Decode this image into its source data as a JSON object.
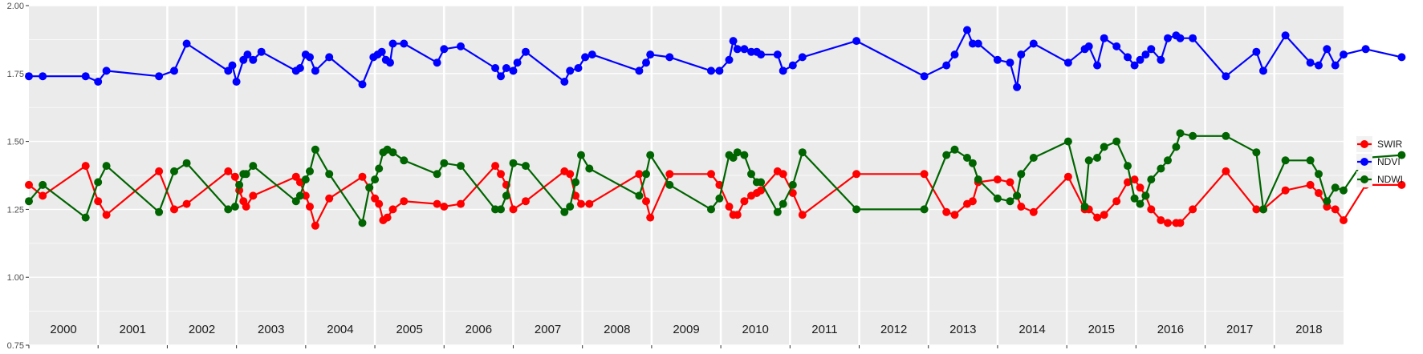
{
  "chart_data": {
    "type": "line",
    "title": "",
    "xlabel": "",
    "ylabel": "",
    "ylim": [
      0.75,
      2.0
    ],
    "yticks": [
      "0.75",
      "1.00",
      "1.25",
      "1.50",
      "1.75",
      "2.00"
    ],
    "xlim": [
      2000.0,
      2019.0
    ],
    "year_labels": [
      "2000",
      "2001",
      "2002",
      "2003",
      "2004",
      "2005",
      "2006",
      "2007",
      "2008",
      "2009",
      "2010",
      "2011",
      "2012",
      "2013",
      "2014",
      "2015",
      "2016",
      "2017",
      "2018"
    ],
    "grid": true,
    "legend_position": "right",
    "series": [
      {
        "name": "SWIR",
        "color": "#ff0000",
        "points": [
          [
            2000.0,
            1.34
          ],
          [
            2000.2,
            1.3
          ],
          [
            2000.82,
            1.41
          ],
          [
            2001.0,
            1.28
          ],
          [
            2001.12,
            1.23
          ],
          [
            2001.88,
            1.39
          ],
          [
            2002.1,
            1.25
          ],
          [
            2002.28,
            1.27
          ],
          [
            2002.88,
            1.39
          ],
          [
            2002.98,
            1.37
          ],
          [
            2003.04,
            1.32
          ],
          [
            2003.1,
            1.28
          ],
          [
            2003.14,
            1.26
          ],
          [
            2003.24,
            1.3
          ],
          [
            2003.86,
            1.37
          ],
          [
            2003.92,
            1.35
          ],
          [
            2004.0,
            1.3
          ],
          [
            2004.06,
            1.26
          ],
          [
            2004.14,
            1.19
          ],
          [
            2004.34,
            1.29
          ],
          [
            2004.82,
            1.37
          ],
          [
            2004.92,
            1.33
          ],
          [
            2005.0,
            1.29
          ],
          [
            2005.06,
            1.27
          ],
          [
            2005.12,
            1.21
          ],
          [
            2005.18,
            1.22
          ],
          [
            2005.26,
            1.25
          ],
          [
            2005.42,
            1.28
          ],
          [
            2005.9,
            1.27
          ],
          [
            2006.0,
            1.26
          ],
          [
            2006.24,
            1.27
          ],
          [
            2006.74,
            1.41
          ],
          [
            2006.82,
            1.38
          ],
          [
            2006.9,
            1.34
          ],
          [
            2007.0,
            1.25
          ],
          [
            2007.18,
            1.28
          ],
          [
            2007.74,
            1.39
          ],
          [
            2007.82,
            1.38
          ],
          [
            2007.9,
            1.3
          ],
          [
            2007.98,
            1.27
          ],
          [
            2008.1,
            1.27
          ],
          [
            2008.82,
            1.38
          ],
          [
            2008.92,
            1.28
          ],
          [
            2008.98,
            1.22
          ],
          [
            2009.26,
            1.38
          ],
          [
            2009.86,
            1.38
          ],
          [
            2009.98,
            1.34
          ],
          [
            2010.12,
            1.26
          ],
          [
            2010.18,
            1.23
          ],
          [
            2010.24,
            1.23
          ],
          [
            2010.34,
            1.28
          ],
          [
            2010.44,
            1.3
          ],
          [
            2010.52,
            1.31
          ],
          [
            2010.58,
            1.32
          ],
          [
            2010.82,
            1.39
          ],
          [
            2010.9,
            1.38
          ],
          [
            2011.04,
            1.31
          ],
          [
            2011.18,
            1.23
          ],
          [
            2011.96,
            1.38
          ],
          [
            2012.94,
            1.38
          ],
          [
            2013.26,
            1.24
          ],
          [
            2013.38,
            1.23
          ],
          [
            2013.56,
            1.27
          ],
          [
            2013.64,
            1.28
          ],
          [
            2013.72,
            1.35
          ],
          [
            2014.0,
            1.36
          ],
          [
            2014.18,
            1.35
          ],
          [
            2014.28,
            1.3
          ],
          [
            2014.34,
            1.26
          ],
          [
            2014.52,
            1.24
          ],
          [
            2015.02,
            1.37
          ],
          [
            2015.26,
            1.25
          ],
          [
            2015.32,
            1.25
          ],
          [
            2015.44,
            1.22
          ],
          [
            2015.54,
            1.23
          ],
          [
            2015.72,
            1.28
          ],
          [
            2015.88,
            1.35
          ],
          [
            2015.98,
            1.36
          ],
          [
            2016.06,
            1.33
          ],
          [
            2016.14,
            1.3
          ],
          [
            2016.22,
            1.25
          ],
          [
            2016.36,
            1.21
          ],
          [
            2016.46,
            1.2
          ],
          [
            2016.58,
            1.2
          ],
          [
            2016.64,
            1.2
          ],
          [
            2016.82,
            1.25
          ],
          [
            2017.3,
            1.39
          ],
          [
            2017.74,
            1.25
          ],
          [
            2017.84,
            1.25
          ],
          [
            2018.16,
            1.32
          ],
          [
            2018.52,
            1.34
          ],
          [
            2018.64,
            1.31
          ],
          [
            2018.76,
            1.26
          ],
          [
            2018.88,
            1.25
          ],
          [
            2019.0,
            1.21
          ],
          [
            2019.32,
            1.34
          ],
          [
            2019.84,
            1.34
          ]
        ]
      },
      {
        "name": "NDVI",
        "color": "#0000ff",
        "points": [
          [
            2000.0,
            1.74
          ],
          [
            2000.2,
            1.74
          ],
          [
            2000.82,
            1.74
          ],
          [
            2001.0,
            1.72
          ],
          [
            2001.12,
            1.76
          ],
          [
            2001.88,
            1.74
          ],
          [
            2002.1,
            1.76
          ],
          [
            2002.28,
            1.86
          ],
          [
            2002.88,
            1.76
          ],
          [
            2002.94,
            1.78
          ],
          [
            2003.0,
            1.72
          ],
          [
            2003.1,
            1.8
          ],
          [
            2003.16,
            1.82
          ],
          [
            2003.24,
            1.8
          ],
          [
            2003.36,
            1.83
          ],
          [
            2003.86,
            1.76
          ],
          [
            2003.92,
            1.77
          ],
          [
            2004.0,
            1.82
          ],
          [
            2004.06,
            1.81
          ],
          [
            2004.14,
            1.76
          ],
          [
            2004.34,
            1.81
          ],
          [
            2004.82,
            1.71
          ],
          [
            2004.98,
            1.81
          ],
          [
            2005.04,
            1.82
          ],
          [
            2005.1,
            1.83
          ],
          [
            2005.16,
            1.8
          ],
          [
            2005.22,
            1.79
          ],
          [
            2005.26,
            1.86
          ],
          [
            2005.42,
            1.86
          ],
          [
            2005.9,
            1.79
          ],
          [
            2006.0,
            1.84
          ],
          [
            2006.24,
            1.85
          ],
          [
            2006.74,
            1.77
          ],
          [
            2006.82,
            1.74
          ],
          [
            2006.9,
            1.77
          ],
          [
            2007.0,
            1.76
          ],
          [
            2007.06,
            1.79
          ],
          [
            2007.18,
            1.83
          ],
          [
            2007.74,
            1.72
          ],
          [
            2007.82,
            1.76
          ],
          [
            2007.94,
            1.77
          ],
          [
            2008.04,
            1.81
          ],
          [
            2008.14,
            1.82
          ],
          [
            2008.82,
            1.76
          ],
          [
            2008.92,
            1.79
          ],
          [
            2008.98,
            1.82
          ],
          [
            2009.26,
            1.81
          ],
          [
            2009.86,
            1.76
          ],
          [
            2009.98,
            1.76
          ],
          [
            2010.12,
            1.8
          ],
          [
            2010.18,
            1.87
          ],
          [
            2010.24,
            1.84
          ],
          [
            2010.34,
            1.84
          ],
          [
            2010.44,
            1.83
          ],
          [
            2010.52,
            1.83
          ],
          [
            2010.58,
            1.82
          ],
          [
            2010.82,
            1.82
          ],
          [
            2010.9,
            1.76
          ],
          [
            2011.04,
            1.78
          ],
          [
            2011.18,
            1.81
          ],
          [
            2011.96,
            1.87
          ],
          [
            2012.94,
            1.74
          ],
          [
            2013.26,
            1.78
          ],
          [
            2013.38,
            1.82
          ],
          [
            2013.56,
            1.91
          ],
          [
            2013.64,
            1.86
          ],
          [
            2013.72,
            1.86
          ],
          [
            2014.0,
            1.8
          ],
          [
            2014.18,
            1.79
          ],
          [
            2014.28,
            1.7
          ],
          [
            2014.34,
            1.82
          ],
          [
            2014.52,
            1.86
          ],
          [
            2015.02,
            1.79
          ],
          [
            2015.26,
            1.84
          ],
          [
            2015.32,
            1.85
          ],
          [
            2015.44,
            1.78
          ],
          [
            2015.54,
            1.88
          ],
          [
            2015.72,
            1.85
          ],
          [
            2015.88,
            1.81
          ],
          [
            2015.98,
            1.78
          ],
          [
            2016.06,
            1.8
          ],
          [
            2016.14,
            1.82
          ],
          [
            2016.22,
            1.84
          ],
          [
            2016.36,
            1.8
          ],
          [
            2016.46,
            1.88
          ],
          [
            2016.58,
            1.89
          ],
          [
            2016.64,
            1.88
          ],
          [
            2016.82,
            1.88
          ],
          [
            2017.3,
            1.74
          ],
          [
            2017.74,
            1.83
          ],
          [
            2017.84,
            1.76
          ],
          [
            2018.16,
            1.89
          ],
          [
            2018.52,
            1.79
          ],
          [
            2018.64,
            1.78
          ],
          [
            2018.76,
            1.84
          ],
          [
            2018.88,
            1.78
          ],
          [
            2019.0,
            1.82
          ],
          [
            2019.32,
            1.84
          ],
          [
            2019.84,
            1.81
          ]
        ]
      },
      {
        "name": "NDWI",
        "color": "#006400",
        "points": [
          [
            2000.0,
            1.28
          ],
          [
            2000.2,
            1.34
          ],
          [
            2000.82,
            1.22
          ],
          [
            2001.0,
            1.35
          ],
          [
            2001.12,
            1.41
          ],
          [
            2001.88,
            1.24
          ],
          [
            2002.1,
            1.39
          ],
          [
            2002.28,
            1.42
          ],
          [
            2002.88,
            1.25
          ],
          [
            2002.98,
            1.26
          ],
          [
            2003.04,
            1.34
          ],
          [
            2003.1,
            1.38
          ],
          [
            2003.14,
            1.38
          ],
          [
            2003.24,
            1.41
          ],
          [
            2003.86,
            1.28
          ],
          [
            2003.92,
            1.3
          ],
          [
            2004.0,
            1.36
          ],
          [
            2004.06,
            1.39
          ],
          [
            2004.14,
            1.47
          ],
          [
            2004.34,
            1.38
          ],
          [
            2004.82,
            1.2
          ],
          [
            2004.92,
            1.33
          ],
          [
            2005.0,
            1.36
          ],
          [
            2005.06,
            1.4
          ],
          [
            2005.12,
            1.46
          ],
          [
            2005.18,
            1.47
          ],
          [
            2005.26,
            1.46
          ],
          [
            2005.42,
            1.43
          ],
          [
            2005.9,
            1.38
          ],
          [
            2006.0,
            1.42
          ],
          [
            2006.24,
            1.41
          ],
          [
            2006.74,
            1.25
          ],
          [
            2006.82,
            1.25
          ],
          [
            2006.9,
            1.3
          ],
          [
            2007.0,
            1.42
          ],
          [
            2007.18,
            1.41
          ],
          [
            2007.74,
            1.24
          ],
          [
            2007.82,
            1.26
          ],
          [
            2007.9,
            1.35
          ],
          [
            2007.98,
            1.45
          ],
          [
            2008.1,
            1.4
          ],
          [
            2008.82,
            1.3
          ],
          [
            2008.92,
            1.38
          ],
          [
            2008.98,
            1.45
          ],
          [
            2009.26,
            1.34
          ],
          [
            2009.86,
            1.25
          ],
          [
            2009.98,
            1.29
          ],
          [
            2010.12,
            1.45
          ],
          [
            2010.18,
            1.44
          ],
          [
            2010.24,
            1.46
          ],
          [
            2010.34,
            1.45
          ],
          [
            2010.44,
            1.38
          ],
          [
            2010.52,
            1.35
          ],
          [
            2010.58,
            1.35
          ],
          [
            2010.82,
            1.24
          ],
          [
            2010.9,
            1.27
          ],
          [
            2011.04,
            1.34
          ],
          [
            2011.18,
            1.46
          ],
          [
            2011.96,
            1.25
          ],
          [
            2012.94,
            1.25
          ],
          [
            2013.26,
            1.45
          ],
          [
            2013.38,
            1.47
          ],
          [
            2013.56,
            1.44
          ],
          [
            2013.64,
            1.42
          ],
          [
            2013.72,
            1.36
          ],
          [
            2014.0,
            1.29
          ],
          [
            2014.18,
            1.28
          ],
          [
            2014.28,
            1.3
          ],
          [
            2014.34,
            1.38
          ],
          [
            2014.52,
            1.44
          ],
          [
            2015.02,
            1.5
          ],
          [
            2015.26,
            1.26
          ],
          [
            2015.32,
            1.43
          ],
          [
            2015.44,
            1.44
          ],
          [
            2015.54,
            1.48
          ],
          [
            2015.72,
            1.5
          ],
          [
            2015.88,
            1.41
          ],
          [
            2015.98,
            1.29
          ],
          [
            2016.06,
            1.27
          ],
          [
            2016.14,
            1.3
          ],
          [
            2016.22,
            1.36
          ],
          [
            2016.36,
            1.4
          ],
          [
            2016.46,
            1.43
          ],
          [
            2016.58,
            1.48
          ],
          [
            2016.64,
            1.53
          ],
          [
            2016.82,
            1.52
          ],
          [
            2017.3,
            1.52
          ],
          [
            2017.74,
            1.46
          ],
          [
            2017.84,
            1.25
          ],
          [
            2018.16,
            1.43
          ],
          [
            2018.52,
            1.43
          ],
          [
            2018.64,
            1.38
          ],
          [
            2018.76,
            1.28
          ],
          [
            2018.88,
            1.33
          ],
          [
            2019.0,
            1.32
          ],
          [
            2019.32,
            1.44
          ],
          [
            2019.84,
            1.45
          ]
        ]
      }
    ]
  }
}
